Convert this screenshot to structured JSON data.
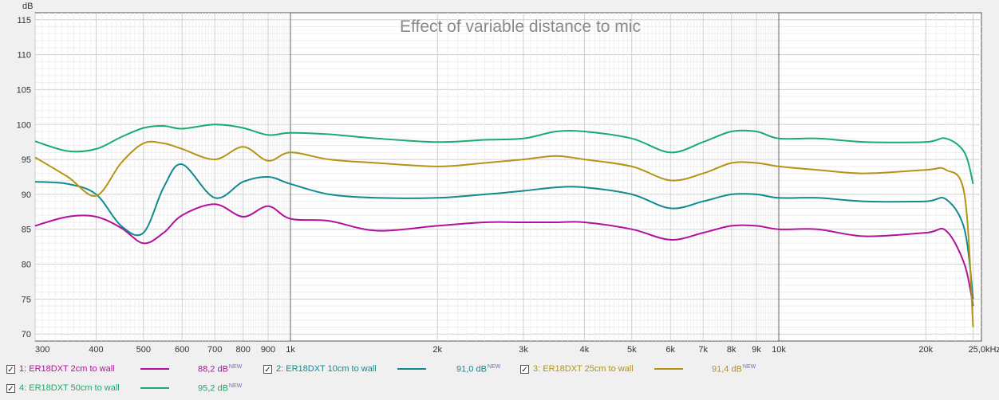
{
  "chart_data": {
    "type": "line",
    "title": "Effect of variable distance to mic",
    "ylabel": "dB",
    "xlabel": "",
    "x_scale": "log",
    "xlim": [
      300,
      26000
    ],
    "ylim": [
      69,
      116
    ],
    "grid": true,
    "x_ticks": [
      300,
      400,
      500,
      600,
      700,
      800,
      900,
      1000,
      2000,
      3000,
      4000,
      5000,
      6000,
      7000,
      8000,
      9000,
      10000,
      20000,
      25000
    ],
    "x_tick_labels": [
      "300",
      "400",
      "500",
      "600",
      "700",
      "800",
      "900",
      "1k",
      "2k",
      "3k",
      "4k",
      "5k",
      "6k",
      "7k",
      "8k",
      "9k",
      "10k",
      "20k",
      "25,0kHz"
    ],
    "y_ticks": [
      70,
      75,
      80,
      85,
      90,
      95,
      100,
      105,
      110,
      115
    ],
    "y_tick_labels": [
      "70",
      "75",
      "80",
      "85",
      "90",
      "95",
      "100",
      "105",
      "110",
      "115"
    ],
    "x": [
      300,
      350,
      400,
      450,
      500,
      550,
      600,
      700,
      800,
      900,
      1000,
      1200,
      1500,
      2000,
      2500,
      3000,
      3500,
      4000,
      5000,
      6000,
      7000,
      8000,
      9000,
      10000,
      12000,
      15000,
      20000,
      22000,
      24000,
      25000
    ],
    "series": [
      {
        "name": "1: ER18DXT 2cm to wall",
        "color": "#b4109e",
        "value_label": "88,2 dB",
        "badge": "NEW",
        "checked": true,
        "values": [
          85.5,
          86.8,
          86.8,
          85.2,
          83.0,
          84.5,
          87.0,
          88.6,
          86.8,
          88.3,
          86.5,
          86.2,
          84.8,
          85.5,
          86.0,
          86.0,
          86.0,
          86.0,
          85.0,
          83.5,
          84.5,
          85.5,
          85.5,
          85.0,
          85.0,
          84.0,
          84.5,
          84.8,
          80.0,
          74.0
        ]
      },
      {
        "name": "2: ER18DXT 10cm to wall",
        "color": "#128a8e",
        "value_label": "91,0 dB",
        "badge": "NEW",
        "checked": true,
        "values": [
          91.8,
          91.5,
          90.0,
          85.5,
          84.5,
          91.0,
          94.3,
          89.5,
          91.8,
          92.5,
          91.5,
          90.0,
          89.5,
          89.5,
          90.0,
          90.5,
          91.0,
          91.0,
          90.0,
          88.0,
          89.0,
          90.0,
          90.0,
          89.5,
          89.5,
          89.0,
          89.0,
          89.3,
          85.0,
          75.0
        ]
      },
      {
        "name": "3: ER18DXT 25cm to wall",
        "color": "#b49414",
        "value_label": "91,4 dB",
        "badge": "NEW",
        "checked": true,
        "values": [
          95.3,
          92.5,
          89.8,
          94.5,
          97.3,
          97.3,
          96.5,
          95.0,
          96.8,
          94.8,
          96.0,
          95.0,
          94.5,
          94.0,
          94.5,
          95.0,
          95.5,
          95.0,
          94.0,
          92.0,
          93.0,
          94.5,
          94.5,
          94.0,
          93.5,
          93.0,
          93.5,
          93.5,
          90.0,
          71.0
        ]
      },
      {
        "name": "4: ER18DXT 50cm to wall",
        "color": "#1aab6e",
        "value_label": "95,2 dB",
        "badge": "NEW",
        "checked": true,
        "values": [
          97.6,
          96.2,
          96.5,
          98.2,
          99.5,
          99.8,
          99.4,
          100.0,
          99.5,
          98.5,
          98.8,
          98.6,
          98.0,
          97.5,
          97.8,
          98.0,
          99.0,
          99.0,
          98.0,
          96.0,
          97.5,
          99.0,
          99.0,
          98.0,
          98.0,
          97.5,
          97.5,
          98.0,
          96.0,
          91.5
        ]
      }
    ]
  },
  "legend": {
    "check_glyph": "✓"
  }
}
